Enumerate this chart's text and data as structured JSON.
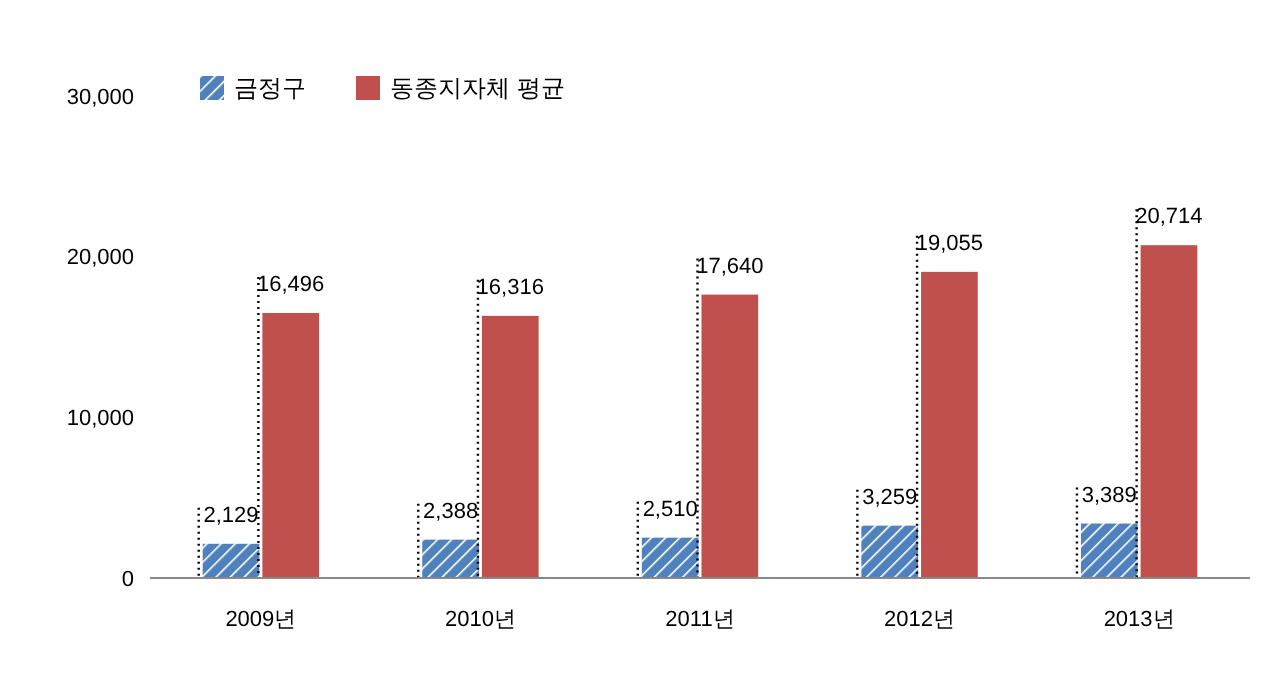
{
  "chart_data": {
    "type": "bar",
    "categories": [
      "2009년",
      "2010년",
      "2011년",
      "2012년",
      "2013년"
    ],
    "series": [
      {
        "name": "금정구",
        "color": "#4f81bd",
        "values": [
          2129,
          2388,
          2510,
          3259,
          3389
        ],
        "value_labels": [
          "2,129",
          "2,388",
          "2,510",
          "3,259",
          "3,389"
        ]
      },
      {
        "name": "동종지자체 평균",
        "color": "#c0504d",
        "values": [
          16496,
          16316,
          17640,
          19055,
          20714
        ],
        "value_labels": [
          "16,496",
          "16,316",
          "17,640",
          "19,055",
          "20,714"
        ]
      }
    ],
    "ylim": [
      0,
      30000
    ],
    "yticks": [
      {
        "value": 0,
        "label": "0"
      },
      {
        "value": 10000,
        "label": "10,000"
      },
      {
        "value": 20000,
        "label": "20,000"
      },
      {
        "value": 30000,
        "label": "30,000"
      }
    ],
    "legend": "top left"
  }
}
